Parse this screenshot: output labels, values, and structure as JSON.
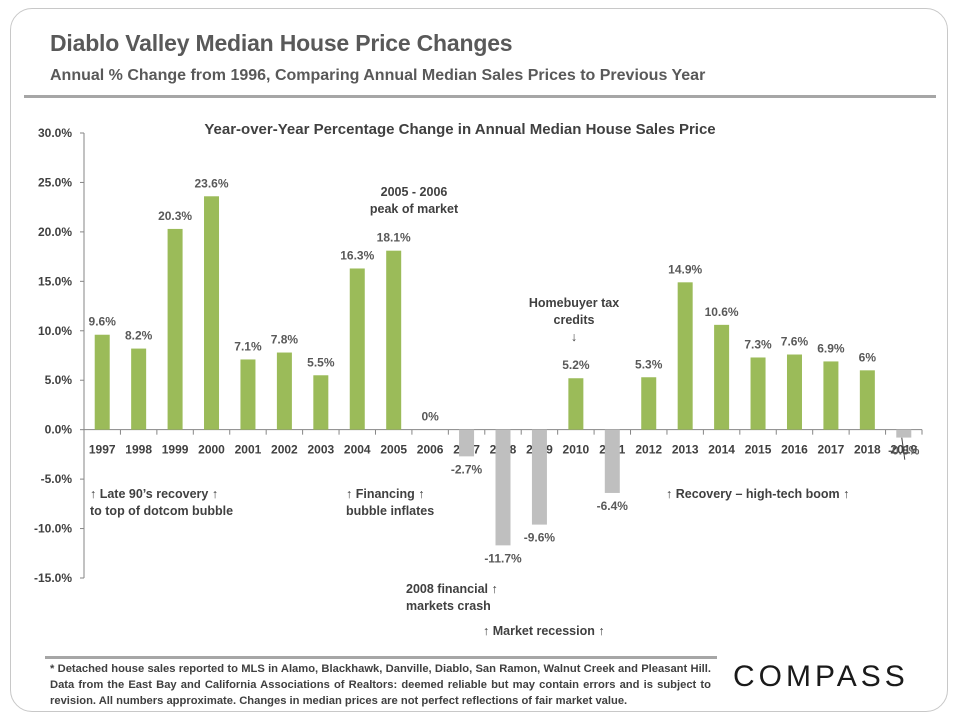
{
  "page": {
    "title": "Diablo Valley Median House Price Changes",
    "subtitle": "Annual % Change from 1996, Comparing Annual Median Sales Prices to Previous Year",
    "footnote": "* Detached house sales reported to MLS in Alamo, Blackhawk, Danville, Diablo, San Ramon, Walnut Creek and Pleasant Hill. Data from the East Bay and California Associations of Realtors:  deemed reliable but may contain errors and is subject to revision. All numbers approximate. Changes in median prices are not perfect reflections of fair market value.",
    "logo": "COMPASS"
  },
  "chart_data": {
    "type": "bar",
    "title": "Year-over-Year Percentage Change in Annual Median House Sales Price",
    "xlabel": "",
    "ylabel": "",
    "ylim": [
      -15,
      30
    ],
    "yticks": [
      30,
      25,
      20,
      15,
      10,
      5,
      0,
      -5,
      -10,
      -15
    ],
    "ytick_labels": [
      "30.0%",
      "25.0%",
      "20.0%",
      "15.0%",
      "10.0%",
      "5.0%",
      "0.0%",
      "-5.0%",
      "-10.0%",
      "-15.0%"
    ],
    "categories": [
      "1997",
      "1998",
      "1999",
      "2000",
      "2001",
      "2002",
      "2003",
      "2004",
      "2005",
      "2006",
      "2007",
      "2008",
      "2009",
      "2010",
      "2011",
      "2012",
      "2013",
      "2014",
      "2015",
      "2016",
      "2017",
      "2018",
      "2019"
    ],
    "values": [
      9.6,
      8.2,
      20.3,
      23.6,
      7.1,
      7.8,
      5.5,
      16.3,
      18.1,
      0,
      -2.7,
      -11.7,
      -9.6,
      5.2,
      -6.4,
      5.3,
      14.9,
      10.6,
      7.3,
      7.6,
      6.9,
      6.0,
      -0.8
    ],
    "data_labels": [
      "9.6%",
      "8.2%",
      "20.3%",
      "23.6%",
      "7.1%",
      "7.8%",
      "5.5%",
      "16.3%",
      "18.1%",
      "0%",
      "-2.7%",
      "-11.7%",
      "-9.6%",
      "5.2%",
      "-6.4%",
      "5.3%",
      "14.9%",
      "10.6%",
      "7.3%",
      "7.6%",
      "6.9%",
      "6%",
      "-0.8%"
    ],
    "colors": {
      "positive": "#9bbb59",
      "negative": "#bfbfbf"
    },
    "grid": false,
    "legend": "none",
    "annotations": [
      {
        "id": "late90s",
        "lines": [
          "↑ Late 90’s recovery ↑",
          "to top of dotcom bubble"
        ]
      },
      {
        "id": "financing",
        "lines": [
          "↑ Financing ↑",
          "bubble inflates"
        ]
      },
      {
        "id": "peak",
        "lines": [
          "2005  - 2006",
          "peak of market"
        ]
      },
      {
        "id": "taxcredit",
        "lines": [
          "Homebuyer tax",
          "credits",
          "↓"
        ]
      },
      {
        "id": "crash",
        "lines": [
          "2008  financial ↑",
          "markets crash"
        ]
      },
      {
        "id": "recession",
        "lines": [
          "↑  Market recession  ↑"
        ]
      },
      {
        "id": "recovery",
        "lines": [
          "↑  Recovery – high-tech boom ↑"
        ]
      }
    ]
  }
}
